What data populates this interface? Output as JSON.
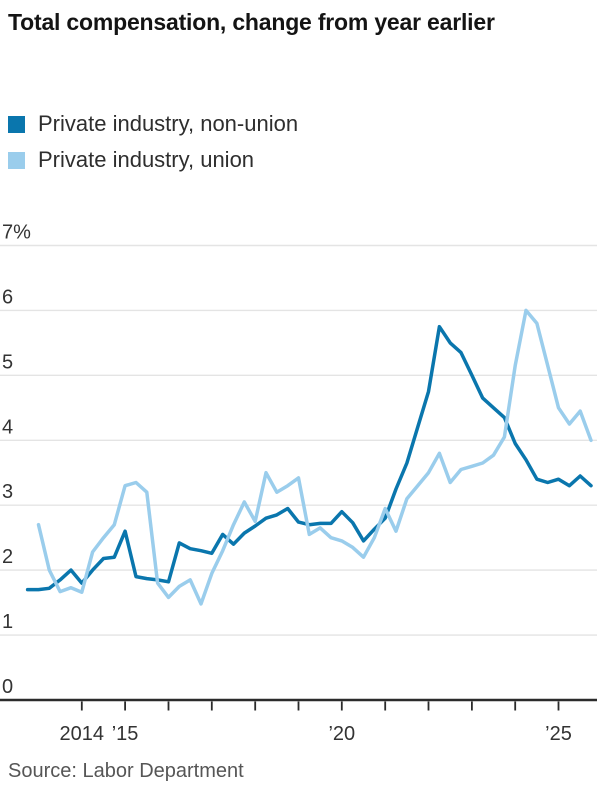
{
  "header": {
    "title": "Total compensation, change from year earlier"
  },
  "legend": {
    "items": [
      {
        "label": "Private industry, non-union",
        "color": "#0a76ad"
      },
      {
        "label": "Private industry, union",
        "color": "#9acdec"
      }
    ]
  },
  "source": {
    "text": "Source: Labor Department"
  },
  "colors": {
    "non_union_line": "#0a76ad",
    "union_line": "#9acdec",
    "gridline": "#e4e4e4",
    "axis": "#2b2b2b",
    "text": "#333333"
  },
  "chart_data": {
    "type": "line",
    "title": "Total compensation, change from year earlier",
    "unit": "%",
    "frequency": "quarterly",
    "grid": "horizontal",
    "legend_position": "top-left",
    "ylim": [
      0,
      7
    ],
    "xlim": [
      2012.6,
      2025.9
    ],
    "y_ticks": [
      {
        "value": 7,
        "label": "7%"
      },
      {
        "value": 6,
        "label": "6"
      },
      {
        "value": 5,
        "label": "5"
      },
      {
        "value": 4,
        "label": "4"
      },
      {
        "value": 3,
        "label": "3"
      },
      {
        "value": 2,
        "label": "2"
      },
      {
        "value": 1,
        "label": "1"
      },
      {
        "value": 0,
        "label": "0"
      }
    ],
    "x_ticks": {
      "minor_years": [
        2014,
        2015,
        2016,
        2017,
        2018,
        2019,
        2020,
        2021,
        2022,
        2023,
        2024,
        2025
      ],
      "labeled": [
        {
          "year": 2014,
          "label": "2014"
        },
        {
          "year": 2015,
          "label": "’15"
        },
        {
          "year": 2020,
          "label": "’20"
        },
        {
          "year": 2025,
          "label": "’25"
        }
      ]
    },
    "series": [
      {
        "name": "Private industry, non-union",
        "color": "#0a76ad",
        "start_year": 2012.75,
        "step_years": 0.25,
        "values": [
          1.7,
          1.7,
          1.72,
          1.85,
          2.0,
          1.8,
          2.0,
          2.18,
          2.2,
          2.6,
          1.9,
          1.87,
          1.85,
          1.82,
          2.42,
          2.33,
          2.3,
          2.26,
          2.55,
          2.4,
          2.57,
          2.68,
          2.8,
          2.85,
          2.95,
          2.74,
          2.7,
          2.72,
          2.72,
          2.9,
          2.73,
          2.45,
          2.63,
          2.8,
          3.25,
          3.65,
          4.2,
          4.75,
          5.75,
          5.5,
          5.35,
          5.0,
          4.65,
          4.5,
          4.35,
          3.95,
          3.7,
          3.4,
          3.35,
          3.4,
          3.3,
          3.45,
          3.3
        ]
      },
      {
        "name": "Private industry, union",
        "color": "#9acdec",
        "start_year": 2013.0,
        "step_years": 0.25,
        "values": [
          2.7,
          2.0,
          1.67,
          1.73,
          1.66,
          2.28,
          2.5,
          2.7,
          3.3,
          3.35,
          3.2,
          1.8,
          1.58,
          1.75,
          1.85,
          1.48,
          1.95,
          2.3,
          2.7,
          3.05,
          2.75,
          3.5,
          3.2,
          3.3,
          3.42,
          2.55,
          2.65,
          2.5,
          2.45,
          2.35,
          2.2,
          2.5,
          2.95,
          2.6,
          3.1,
          3.3,
          3.5,
          3.8,
          3.35,
          3.55,
          3.6,
          3.65,
          3.77,
          4.05,
          5.15,
          6.0,
          5.8,
          5.15,
          4.5,
          4.25,
          4.45,
          4.0
        ]
      }
    ]
  }
}
